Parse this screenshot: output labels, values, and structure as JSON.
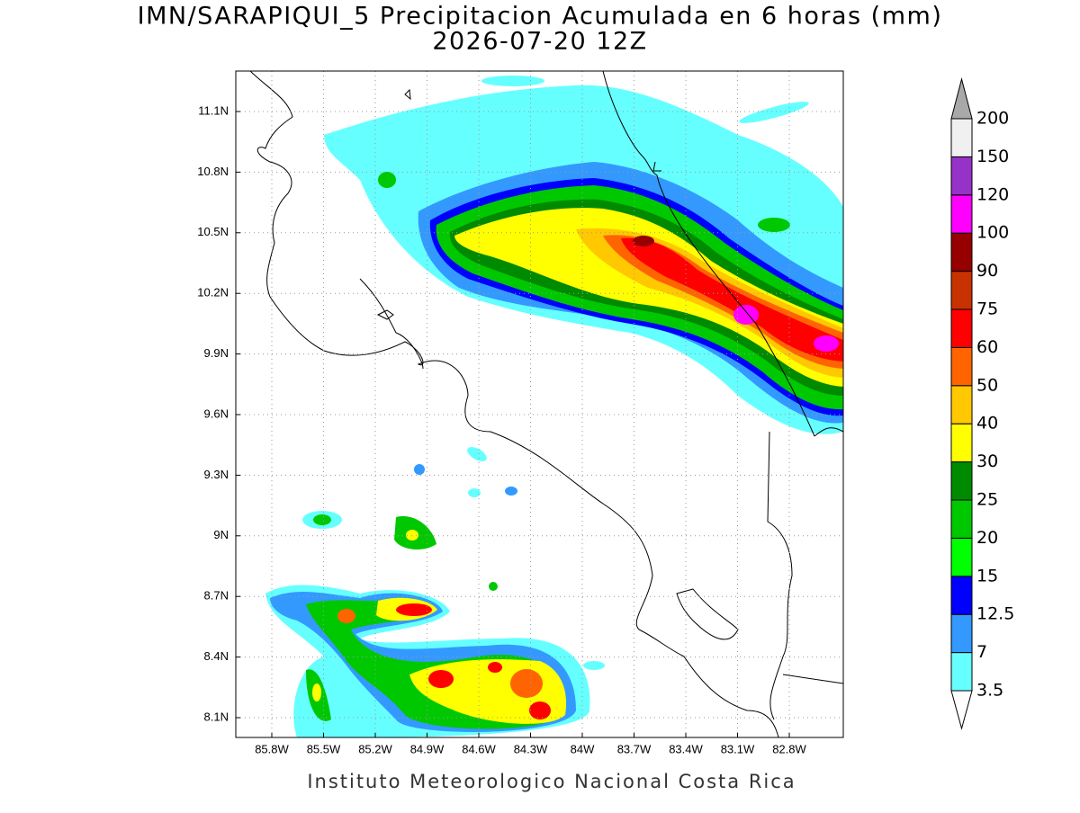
{
  "title": "IMN/SARAPIQUI_5 Precipitacion Acumulada en 6 horas (mm)",
  "subtitle": "2026-07-20 12Z",
  "map": {
    "x_labels": [
      "85.8W",
      "85.5W",
      "85.2W",
      "84.9W",
      "84.6W",
      "84.3W",
      "84W",
      "83.7W",
      "83.4W",
      "83.1W",
      "82.8W"
    ],
    "y_labels": [
      "11.1N",
      "10.8N",
      "10.5N",
      "10.2N",
      "9.9N",
      "9.6N",
      "9.3N",
      "9N",
      "8.7N",
      "8.4N",
      "8.1N"
    ]
  },
  "colorbar": {
    "levels": [
      3.5,
      7,
      12.5,
      15,
      20,
      25,
      30,
      40,
      50,
      60,
      75,
      90,
      100,
      120,
      150,
      200
    ],
    "colors": [
      "#66ffff",
      "#3399ff",
      "#0000ff",
      "#00ff00",
      "#00c800",
      "#008a00",
      "#ffff00",
      "#ffc800",
      "#ff6400",
      "#ff0000",
      "#c83200",
      "#960000",
      "#ff00ff",
      "#9632c8",
      "#f0f0f0"
    ],
    "under_color": "#ffffff",
    "over_color": "#a8a8a8"
  },
  "footer": "Instituto Meteorologico Nacional Costa Rica"
}
